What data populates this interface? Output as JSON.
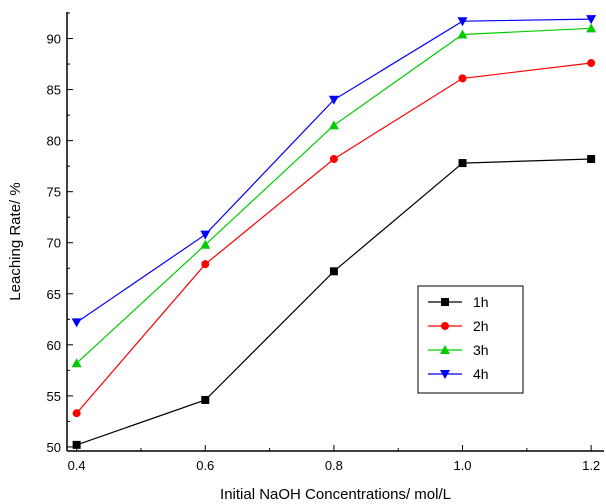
{
  "chart_data": {
    "type": "line",
    "title": "",
    "xlabel": "Initial NaOH Concentrations/ mol/L",
    "ylabel": "Leaching Rate/ %",
    "x": [
      0.4,
      0.6,
      0.8,
      1.0,
      1.2
    ],
    "x_tick_labels": [
      "0.4",
      "0.6",
      "0.8",
      "1.0",
      "1.2"
    ],
    "y_ticks": [
      50,
      55,
      60,
      65,
      70,
      75,
      80,
      85,
      90
    ],
    "y_tick_labels": [
      "50",
      "55",
      "60",
      "65",
      "70",
      "75",
      "80",
      "85",
      "90"
    ],
    "xlim": [
      0.385,
      1.22
    ],
    "ylim": [
      49.6,
      92.6
    ],
    "grid": false,
    "legend_position": "bottom-right",
    "series": [
      {
        "name": "1h",
        "color": "#000000",
        "marker": "square",
        "values": [
          50.2,
          54.6,
          67.2,
          77.8,
          78.2
        ]
      },
      {
        "name": "2h",
        "color": "#ff0000",
        "marker": "circle",
        "values": [
          53.3,
          67.9,
          78.2,
          86.1,
          87.6
        ]
      },
      {
        "name": "3h",
        "color": "#00cc00",
        "marker": "triangle-up",
        "values": [
          58.2,
          69.8,
          81.5,
          90.4,
          91.0
        ]
      },
      {
        "name": "4h",
        "color": "#0000ff",
        "marker": "triangle-down",
        "values": [
          62.2,
          70.8,
          84.0,
          91.7,
          91.9
        ]
      }
    ]
  }
}
